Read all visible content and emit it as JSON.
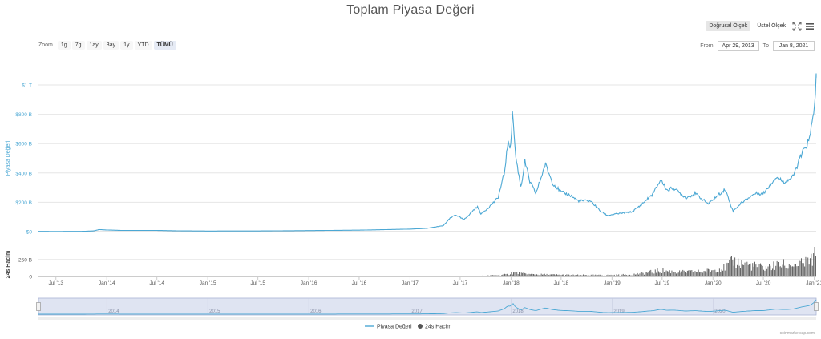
{
  "chart_title": "Toplam Piyasa Değeri",
  "scale": {
    "linear_label": "Doğrusal Ölçek",
    "log_label": "Üstel Ölçek",
    "active": "linear"
  },
  "zoom": {
    "label": "Zoom",
    "buttons": [
      "1g",
      "7g",
      "1ay",
      "3ay",
      "1y",
      "YTD",
      "TÜMÜ"
    ],
    "active": "TÜMÜ"
  },
  "range": {
    "from_label": "From",
    "from_value": "Apr 29, 2013",
    "to_label": "To",
    "to_value": "Jan 8, 2021"
  },
  "credit": "coinmarketcap.com",
  "colors": {
    "market_cap": "#4ca8d4",
    "volume": "#555555",
    "navigator_fill": "#dfe4f2"
  },
  "chart_data": {
    "type": "line",
    "x_axis": {
      "tick_labels": [
        "Jul '13",
        "Jan '14",
        "Jul '14",
        "Jan '15",
        "Jul '15",
        "Jan '16",
        "Jul '16",
        "Jan '17",
        "Jul '17",
        "Jan '18",
        "Jul '18",
        "Jan '19",
        "Jul '19",
        "Jan '20",
        "Jul '20",
        "Jan '21"
      ],
      "tick_dates": [
        "2013-07-01",
        "2014-01-01",
        "2014-07-01",
        "2015-01-01",
        "2015-07-01",
        "2016-01-01",
        "2016-07-01",
        "2017-01-01",
        "2017-07-01",
        "2018-01-01",
        "2018-07-01",
        "2019-01-01",
        "2019-07-01",
        "2020-01-01",
        "2020-07-01",
        "2021-01-01"
      ],
      "range": [
        "2013-04-29",
        "2021-01-08"
      ]
    },
    "y_axis_top": {
      "label": "Piyasa Değeri",
      "ticks": [
        0,
        200,
        400,
        600,
        800,
        1000
      ],
      "tick_labels": [
        "$0",
        "$200 B",
        "$400 B",
        "$600 B",
        "$800 B",
        "$1 T"
      ],
      "unit": "billion USD",
      "range": [
        0,
        1000
      ]
    },
    "y_axis_bottom": {
      "label": "24s Hacim",
      "ticks": [
        0,
        250
      ],
      "tick_labels": [
        "0",
        "250 B"
      ],
      "unit": "billion USD",
      "range": [
        0,
        400
      ]
    },
    "series": [
      {
        "name": "Piyasa Değeri",
        "color": "#4ca8d4",
        "points": [
          [
            "2013-04-29",
            1.6
          ],
          [
            "2013-07-01",
            1.2
          ],
          [
            "2013-10-01",
            1.8
          ],
          [
            "2013-11-15",
            5
          ],
          [
            "2013-12-04",
            14
          ],
          [
            "2014-01-01",
            11
          ],
          [
            "2014-03-01",
            8
          ],
          [
            "2014-07-01",
            8
          ],
          [
            "2014-10-01",
            5
          ],
          [
            "2015-01-01",
            4
          ],
          [
            "2015-07-01",
            4.5
          ],
          [
            "2016-01-01",
            7
          ],
          [
            "2016-07-01",
            10
          ],
          [
            "2017-01-01",
            17
          ],
          [
            "2017-03-01",
            22
          ],
          [
            "2017-05-01",
            40
          ],
          [
            "2017-05-25",
            90
          ],
          [
            "2017-06-15",
            115
          ],
          [
            "2017-07-15",
            80
          ],
          [
            "2017-08-15",
            140
          ],
          [
            "2017-09-01",
            170
          ],
          [
            "2017-09-15",
            120
          ],
          [
            "2017-10-15",
            170
          ],
          [
            "2017-11-15",
            230
          ],
          [
            "2017-12-08",
            400
          ],
          [
            "2017-12-20",
            600
          ],
          [
            "2017-12-30",
            580
          ],
          [
            "2018-01-07",
            825
          ],
          [
            "2018-01-17",
            520
          ],
          [
            "2018-02-06",
            300
          ],
          [
            "2018-02-20",
            480
          ],
          [
            "2018-03-10",
            340
          ],
          [
            "2018-04-01",
            260
          ],
          [
            "2018-05-05",
            460
          ],
          [
            "2018-06-01",
            330
          ],
          [
            "2018-07-01",
            270
          ],
          [
            "2018-08-01",
            250
          ],
          [
            "2018-09-01",
            210
          ],
          [
            "2018-10-15",
            210
          ],
          [
            "2018-11-20",
            140
          ],
          [
            "2018-12-15",
            110
          ],
          [
            "2019-01-15",
            120
          ],
          [
            "2019-03-15",
            135
          ],
          [
            "2019-04-15",
            180
          ],
          [
            "2019-05-30",
            260
          ],
          [
            "2019-06-26",
            355
          ],
          [
            "2019-07-20",
            280
          ],
          [
            "2019-08-10",
            300
          ],
          [
            "2019-09-25",
            230
          ],
          [
            "2019-10-28",
            260
          ],
          [
            "2019-12-15",
            190
          ],
          [
            "2020-02-14",
            290
          ],
          [
            "2020-03-13",
            140
          ],
          [
            "2020-04-15",
            200
          ],
          [
            "2020-06-01",
            260
          ],
          [
            "2020-07-01",
            260
          ],
          [
            "2020-08-15",
            370
          ],
          [
            "2020-09-15",
            340
          ],
          [
            "2020-10-15",
            370
          ],
          [
            "2020-11-15",
            520
          ],
          [
            "2020-12-15",
            630
          ],
          [
            "2020-12-28",
            790
          ],
          [
            "2021-01-03",
            900
          ],
          [
            "2021-01-08",
            1050
          ]
        ]
      },
      {
        "name": "24s Hacim",
        "color": "#555555",
        "points": [
          [
            "2013-04-29",
            0.1
          ],
          [
            "2016-01-01",
            0.2
          ],
          [
            "2017-01-01",
            1
          ],
          [
            "2017-06-01",
            2
          ],
          [
            "2017-09-01",
            6
          ],
          [
            "2017-12-15",
            30
          ],
          [
            "2018-01-07",
            60
          ],
          [
            "2018-03-01",
            35
          ],
          [
            "2018-07-01",
            25
          ],
          [
            "2018-12-01",
            20
          ],
          [
            "2019-02-01",
            25
          ],
          [
            "2019-04-01",
            40
          ],
          [
            "2019-06-26",
            95
          ],
          [
            "2019-09-01",
            70
          ],
          [
            "2019-12-01",
            80
          ],
          [
            "2020-02-15",
            150
          ],
          [
            "2020-03-13",
            250
          ],
          [
            "2020-05-01",
            190
          ],
          [
            "2020-07-01",
            140
          ],
          [
            "2020-09-01",
            190
          ],
          [
            "2020-11-15",
            200
          ],
          [
            "2020-12-20",
            260
          ],
          [
            "2021-01-08",
            370
          ]
        ]
      }
    ],
    "navigator": {
      "tick_labels": [
        "2014",
        "2015",
        "2016",
        "2017",
        "2018",
        "2019",
        "2020"
      ],
      "tick_dates": [
        "2014-01-01",
        "2015-01-01",
        "2016-01-01",
        "2017-01-01",
        "2018-01-01",
        "2019-01-01",
        "2020-01-01"
      ]
    },
    "legend": {
      "placement": "bottom-center",
      "entries": [
        "Piyasa Değeri",
        "24s Hacim"
      ]
    },
    "grid": true
  }
}
